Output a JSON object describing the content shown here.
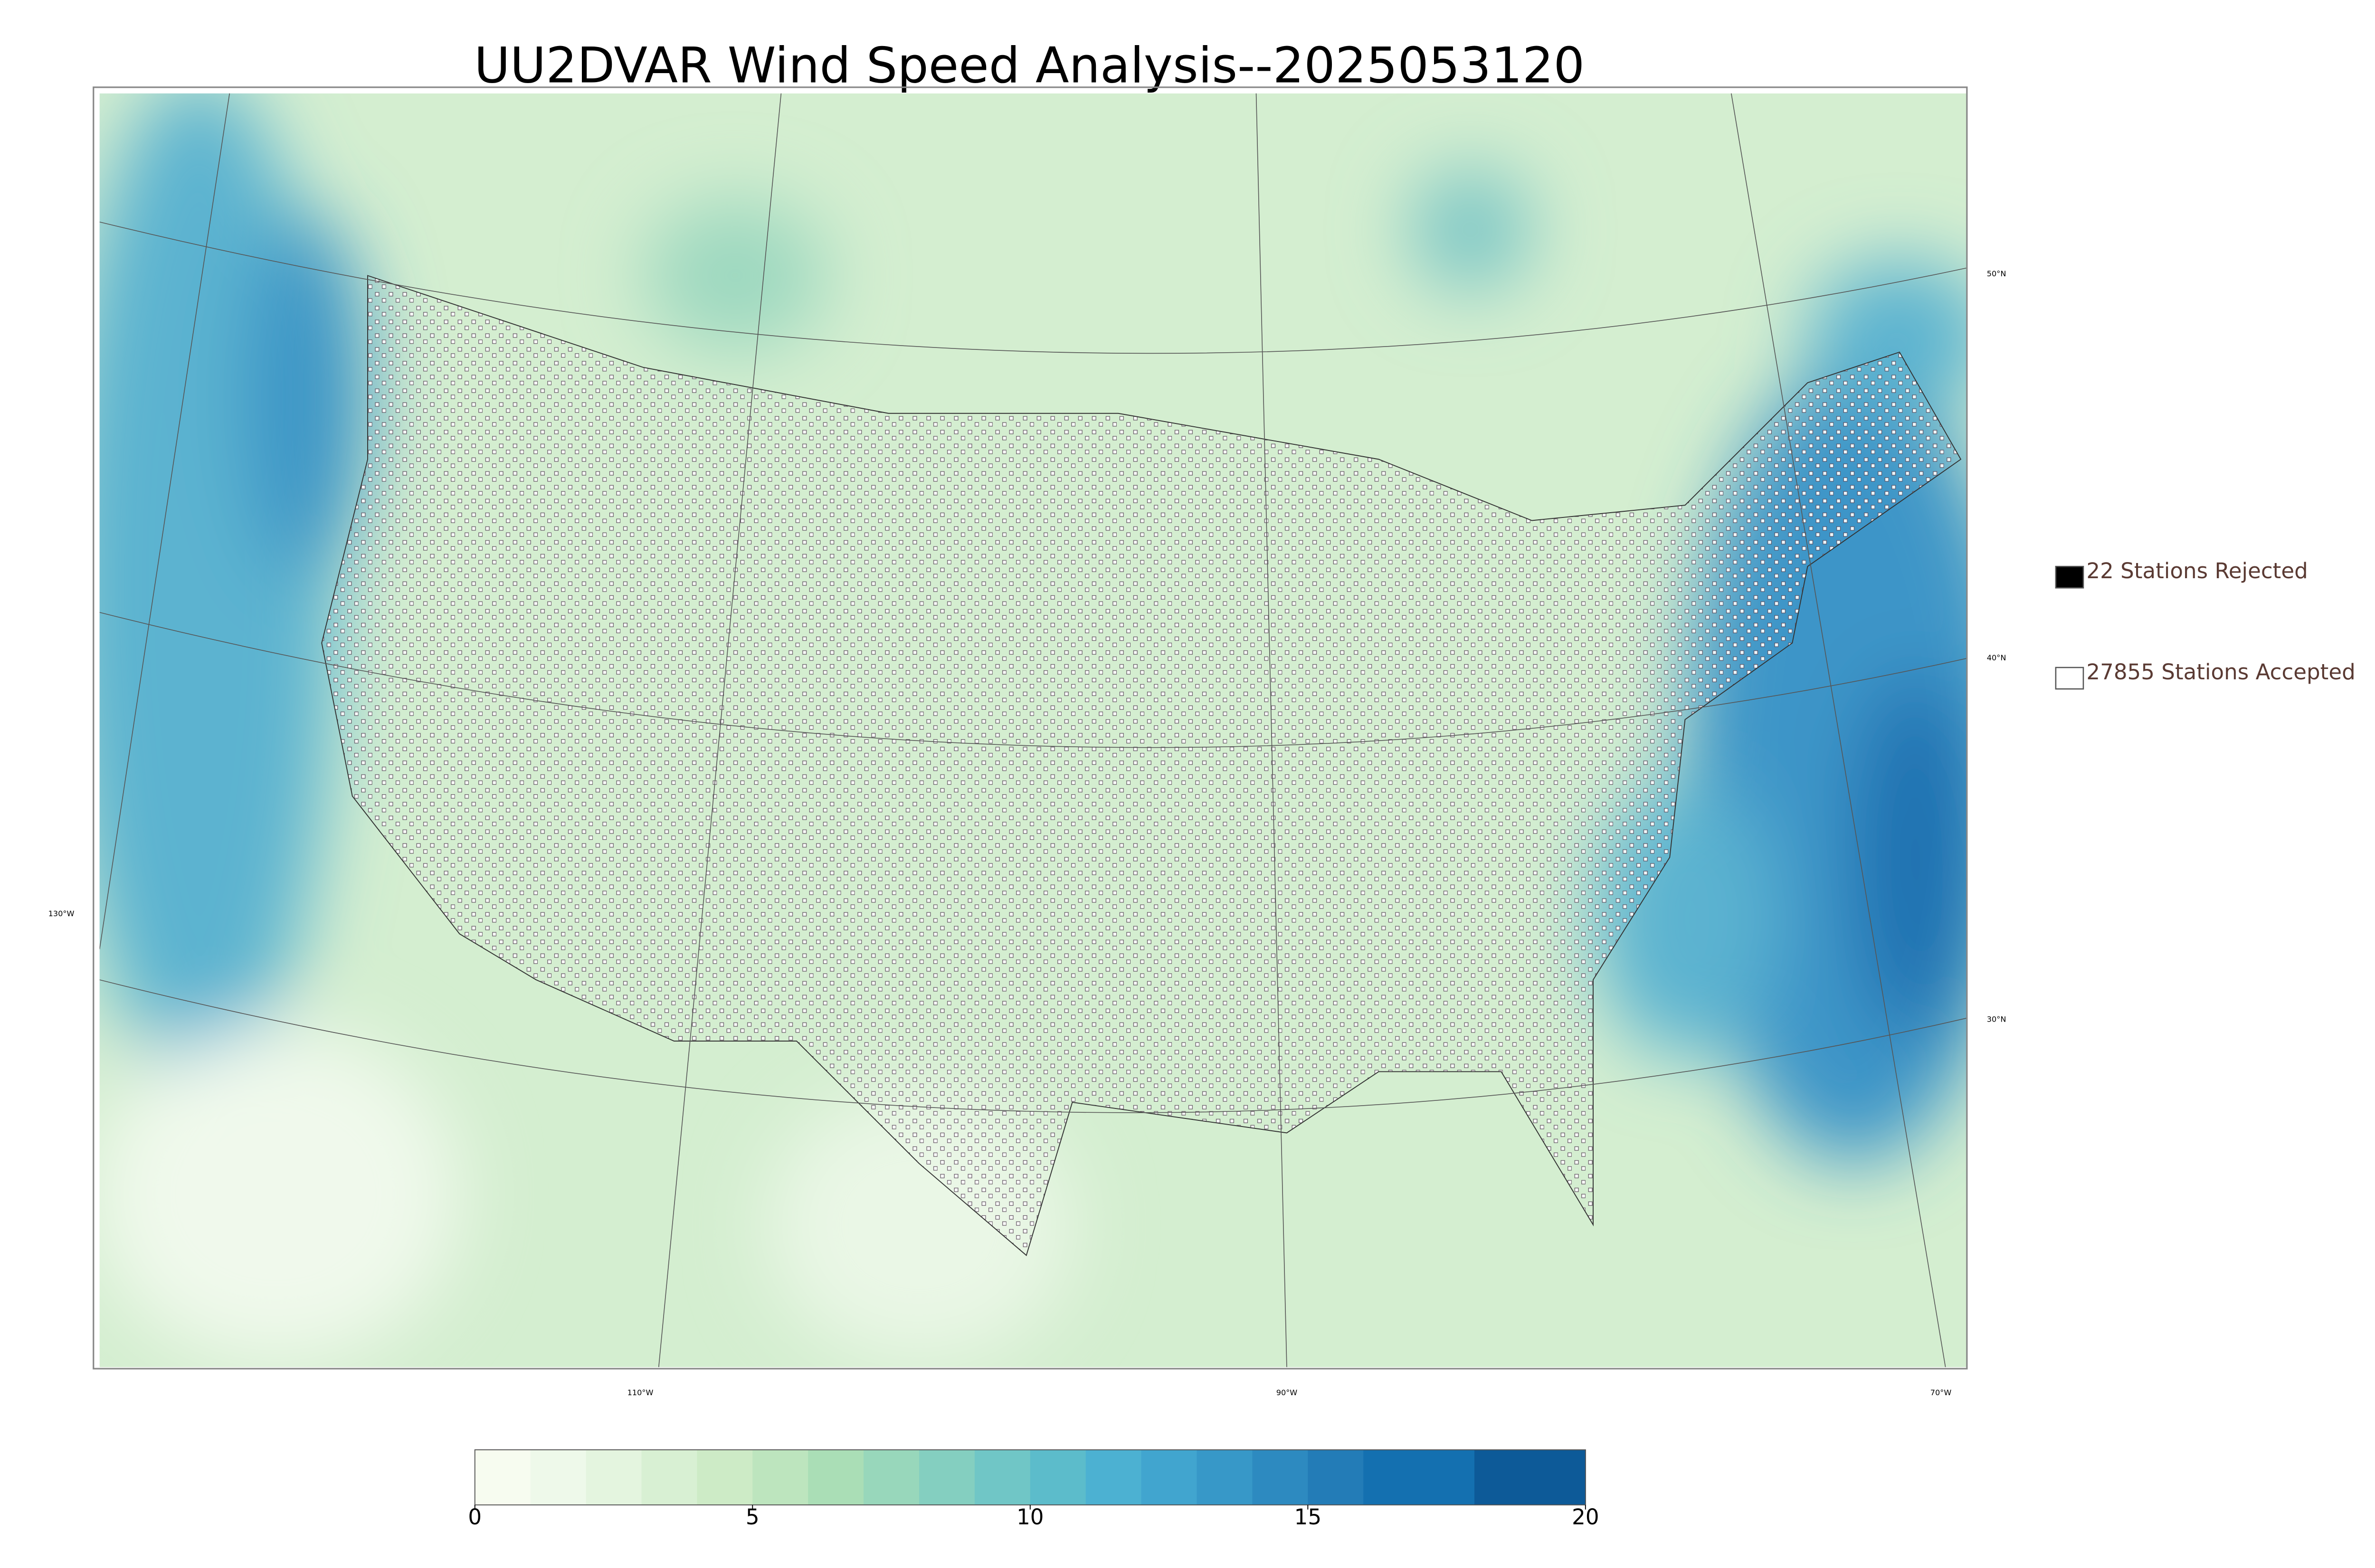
{
  "chart_data": {
    "type": "map",
    "title": "UU2DVAR Wind Speed Analysis--2025053120",
    "legend": [
      "22 Stations Rejected",
      "27855 Stations Accepted"
    ],
    "legend_colors": [
      "#000000",
      "#ffffff"
    ],
    "lat_labels": [
      "50°N",
      "40°N",
      "30°N"
    ],
    "lon_labels": [
      "130°W",
      "110°W",
      "90°W",
      "70°W"
    ],
    "colorbar": {
      "lim": [
        0,
        20
      ],
      "ticks": [
        0,
        5,
        10,
        15,
        20
      ],
      "colors": [
        "#f7fcf0",
        "#eef9ea",
        "#e4f5df",
        "#d8f0d3",
        "#cdebc6",
        "#bde5be",
        "#aadeb6",
        "#98d7bb",
        "#84cfc0",
        "#70c6c6",
        "#5cbccb",
        "#4cb1d2",
        "#41a5cf",
        "#3798c8",
        "#2d8ac0",
        "#237cb7",
        "#1470b0",
        "#1470b0",
        "#0d5a98",
        "#0d5a98"
      ]
    }
  }
}
